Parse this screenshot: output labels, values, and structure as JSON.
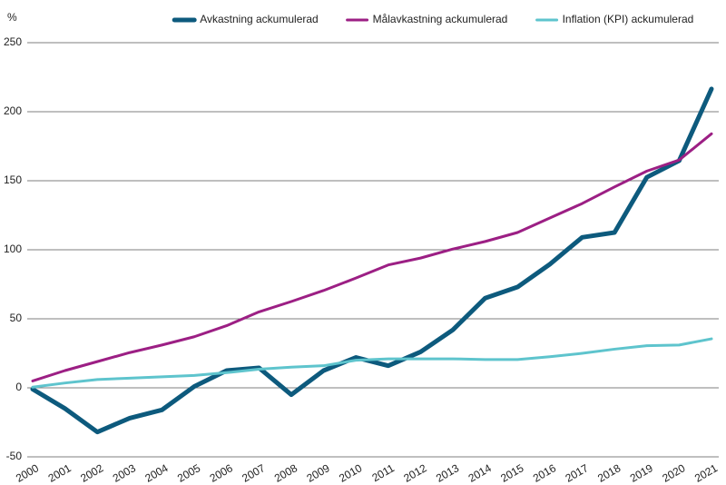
{
  "chart_data": {
    "type": "line",
    "y_label": "%",
    "categories": [
      "2000",
      "2001",
      "2002",
      "2003",
      "2004",
      "2005",
      "2006",
      "2007",
      "2008",
      "2009",
      "2010",
      "2011",
      "2012",
      "2013",
      "2014",
      "2015",
      "2016",
      "2017",
      "2018",
      "2019",
      "2020",
      "2021"
    ],
    "series": [
      {
        "name": "Avkastning ackumulerad",
        "color": "#0d5a7d",
        "width": 5,
        "values": [
          -1,
          -15,
          -32,
          -22,
          -16,
          1,
          12.5,
          14.5,
          -5,
          12.5,
          22,
          16,
          26,
          42,
          65,
          73,
          89.5,
          109,
          112.5,
          152.5,
          164.5,
          216.5
        ]
      },
      {
        "name": "Målavkastning ackumulerad",
        "color": "#9c1f84",
        "width": 3,
        "values": [
          5,
          12.5,
          19,
          25.5,
          31,
          37,
          45,
          55,
          62.5,
          70.5,
          79.5,
          89,
          94,
          100.5,
          106,
          112.5,
          123,
          133.5,
          145.5,
          157,
          165,
          184
        ]
      },
      {
        "name": "Inflation (KPI) ackumulerad",
        "color": "#5ec4cd",
        "width": 3,
        "values": [
          0.5,
          3.5,
          6,
          7,
          8,
          9,
          11,
          13.5,
          15,
          16,
          20,
          21,
          21,
          21,
          20.5,
          20.5,
          22.5,
          25,
          28,
          30.5,
          31,
          35.5
        ]
      }
    ],
    "ylim": [
      -50,
      250
    ],
    "yticks": [
      -50,
      0,
      50,
      100,
      150,
      200,
      250
    ],
    "grid": true,
    "legend": "top-right"
  }
}
